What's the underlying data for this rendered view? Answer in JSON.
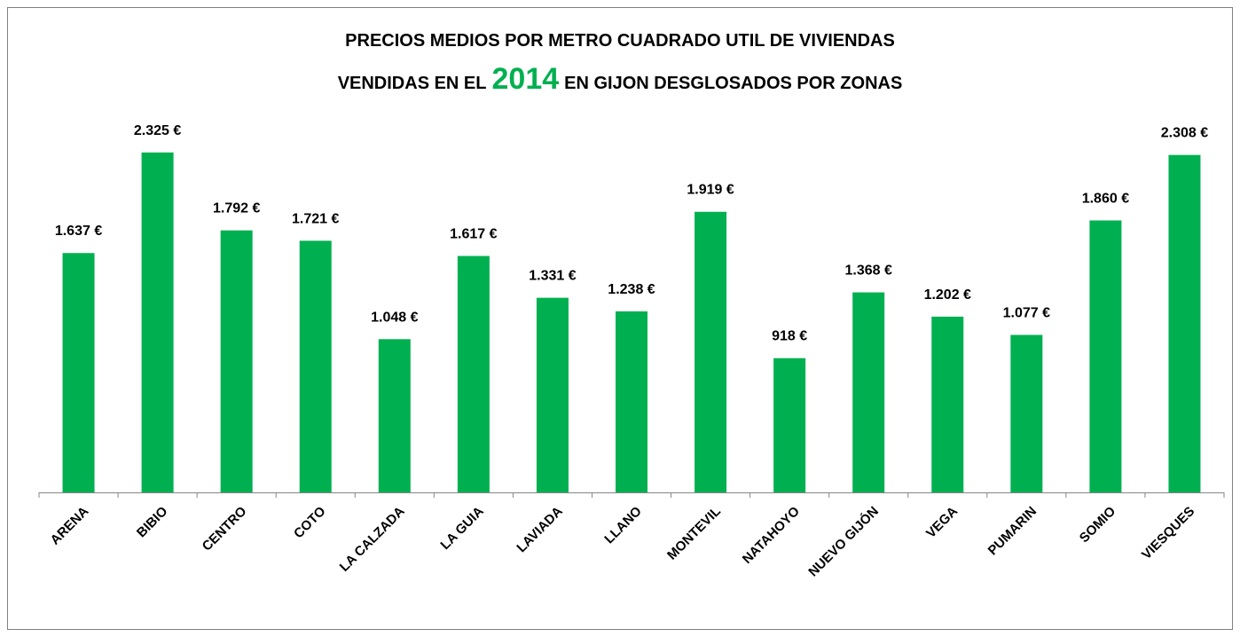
{
  "chart_data": {
    "type": "bar",
    "title": [
      "PRECIOS MEDIOS POR METRO CUADRADO UTIL DE VIVIENDAS",
      "VENDIDAS EN EL",
      "2014",
      "EN GIJON DESGLOSADOS POR ZONAS"
    ],
    "categories": [
      "ARENA",
      "BIBIO",
      "CENTRO",
      "COTO",
      "LA CALZADA",
      "LA GUIA",
      "LAVIADA",
      "LLANO",
      "MONTEVIL",
      "NATAHOYO",
      "NUEVO GIJÓN",
      "VEGA",
      "PUMARIN",
      "SOMIO",
      "VIESQUES"
    ],
    "values": [
      1637,
      2325,
      1792,
      1721,
      1048,
      1617,
      1331,
      1238,
      1919,
      918,
      1368,
      1202,
      1077,
      1860,
      2308
    ],
    "value_labels": [
      "1.637 €",
      "2.325 €",
      "1.792 €",
      "1.721 €",
      "1.048 €",
      "1.617 €",
      "1.331 €",
      "1.238 €",
      "1.919 €",
      "918 €",
      "1.368 €",
      "1.202 €",
      "1.077 €",
      "1.860 €",
      "2.308 €"
    ],
    "color": "#00b050",
    "ylim": [
      0,
      2500
    ]
  }
}
